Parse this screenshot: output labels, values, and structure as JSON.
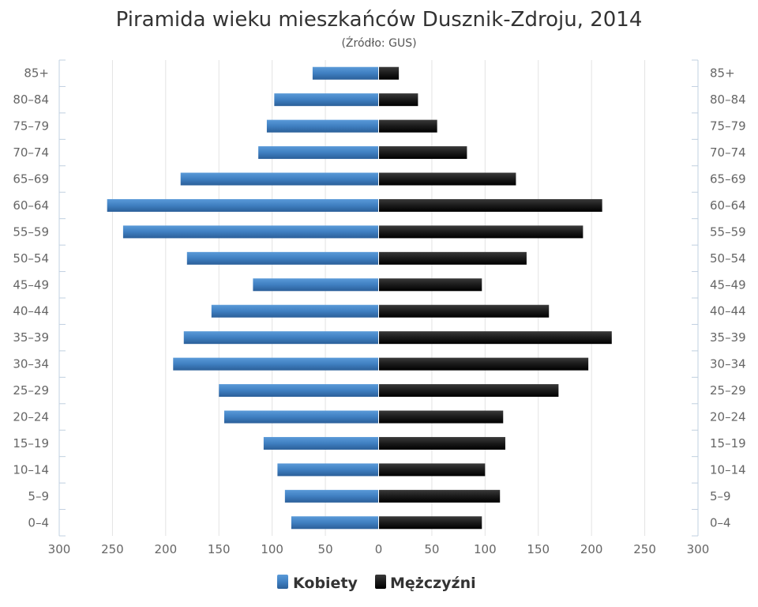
{
  "chart_data": {
    "type": "bar",
    "orientation": "horizontal-population-pyramid",
    "title": "Piramida wieku mieszkańców Dusznik-Zdroju, 2014",
    "subtitle": "(Źródło: GUS)",
    "categories": [
      "85+",
      "80–84",
      "75–79",
      "70–74",
      "65–69",
      "60–64",
      "55–59",
      "50–54",
      "45–49",
      "40–44",
      "35–39",
      "30–34",
      "25–29",
      "20–24",
      "15–19",
      "10–14",
      "5–9",
      "0–4"
    ],
    "series": [
      {
        "name": "Kobiety",
        "side": "left",
        "color": "#3f7fc1",
        "values": [
          62,
          98,
          105,
          113,
          186,
          255,
          240,
          180,
          118,
          157,
          183,
          193,
          150,
          145,
          108,
          95,
          88,
          82
        ]
      },
      {
        "name": "Mężczyźni",
        "side": "right",
        "color": "#1a1a1a",
        "values": [
          19,
          37,
          55,
          83,
          129,
          210,
          192,
          139,
          97,
          160,
          219,
          197,
          169,
          117,
          119,
          100,
          114,
          97
        ]
      }
    ],
    "xticks": [
      "300",
      "250",
      "200",
      "150",
      "100",
      "50",
      "0",
      "50",
      "100",
      "150",
      "200",
      "250",
      "300"
    ],
    "xlim": [
      -300,
      300
    ],
    "grid": true,
    "legend_position": "bottom-center"
  }
}
